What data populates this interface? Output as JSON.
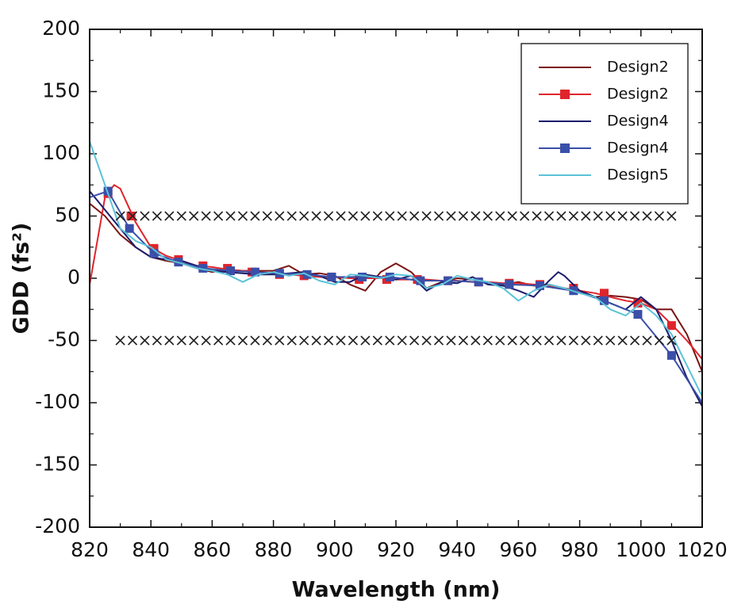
{
  "chart_data": {
    "type": "line",
    "xlabel": "Wavelength (nm)",
    "ylabel": "GDD (fs²)",
    "xlim": [
      820,
      1020
    ],
    "xticks": [
      820,
      840,
      860,
      880,
      900,
      920,
      940,
      960,
      980,
      1000,
      1020
    ],
    "ylim": [
      -200,
      200
    ],
    "yticks": [
      -200,
      -150,
      -100,
      -50,
      0,
      50,
      100,
      150,
      200
    ],
    "legend": "upper right",
    "series": [
      {
        "name": "Design2",
        "color": "#7a1414",
        "x": [
          820,
          825,
          830,
          835,
          840,
          845,
          850,
          855,
          860,
          865,
          870,
          875,
          880,
          885,
          890,
          895,
          900,
          905,
          910,
          915,
          920,
          925,
          930,
          935,
          940,
          945,
          950,
          955,
          960,
          965,
          970,
          975,
          980,
          985,
          990,
          995,
          1000,
          1005,
          1010,
          1015,
          1020
        ],
        "values": [
          60,
          50,
          35,
          25,
          17,
          14,
          12,
          8,
          5,
          7,
          6,
          6,
          6,
          10,
          3,
          4,
          2,
          -5,
          -10,
          5,
          12,
          5,
          -8,
          -3,
          0,
          -1,
          -3,
          -5,
          -3,
          -6,
          -5,
          -8,
          -10,
          -15,
          -14,
          -15,
          -17,
          -25,
          -25,
          -45,
          -75
        ]
      },
      {
        "name": "Design2",
        "color": "#e0242b",
        "x": [
          820,
          825,
          828,
          830,
          835,
          840,
          845,
          850,
          855,
          860,
          865,
          870,
          875,
          880,
          885,
          890,
          895,
          900,
          905,
          910,
          915,
          920,
          925,
          930,
          935,
          940,
          945,
          950,
          955,
          960,
          965,
          970,
          975,
          980,
          985,
          990,
          995,
          1000,
          1005,
          1010,
          1015,
          1020
        ],
        "values": [
          -5,
          65,
          75,
          72,
          45,
          25,
          18,
          14,
          10,
          9,
          7,
          6,
          5,
          4,
          3,
          2,
          1,
          1,
          0,
          0,
          0,
          -1,
          -1,
          -1,
          -2,
          -2,
          -3,
          -3,
          -4,
          -4,
          -5,
          -6,
          -8,
          -10,
          -12,
          -15,
          -18,
          -20,
          -25,
          -37,
          -50,
          -65
        ],
        "markers": {
          "x": [
            826,
            833.5,
            841,
            849,
            857,
            865,
            873,
            882,
            890,
            899,
            908,
            917,
            927,
            937,
            947,
            957,
            967,
            978,
            988,
            999,
            1010
          ],
          "values": [
            68,
            50,
            24,
            15,
            10,
            8,
            5,
            3,
            2,
            1,
            -1,
            -1,
            -1,
            -2,
            -3,
            -4,
            -5,
            -8,
            -12,
            -20,
            -38
          ]
        }
      },
      {
        "name": "Design4",
        "color": "#1c1c6b",
        "x": [
          820,
          825,
          830,
          835,
          840,
          845,
          850,
          855,
          860,
          865,
          870,
          875,
          880,
          885,
          890,
          895,
          900,
          905,
          910,
          915,
          920,
          925,
          930,
          935,
          940,
          945,
          950,
          955,
          960,
          965,
          970,
          973,
          975,
          980,
          985,
          990,
          995,
          1000,
          1005,
          1010,
          1015,
          1020
        ],
        "values": [
          70,
          55,
          40,
          25,
          17,
          15,
          14,
          10,
          6,
          5,
          4,
          3,
          3,
          4,
          5,
          2,
          -3,
          -3,
          3,
          1,
          -1,
          2,
          -10,
          -3,
          -4,
          1,
          -5,
          -6,
          -10,
          -15,
          -2,
          5,
          2,
          -10,
          -15,
          -20,
          -25,
          -15,
          -25,
          -50,
          -80,
          -103
        ]
      },
      {
        "name": "Design4",
        "color": "#3a4fa8",
        "x": [
          820,
          826,
          833,
          841,
          849,
          857,
          866,
          874,
          882,
          891,
          899,
          909,
          918,
          928,
          937,
          947,
          957,
          967,
          978,
          988,
          999,
          1010,
          1020
        ],
        "values": [
          65,
          70,
          40,
          20,
          13,
          8,
          6,
          5,
          4,
          3,
          1,
          1,
          1,
          -2,
          -2,
          -3,
          -5,
          -6,
          -10,
          -18,
          -29,
          -62,
          -100
        ],
        "markers": {
          "x": [
            826,
            833,
            841,
            849,
            857,
            866,
            874,
            882,
            891,
            899,
            909,
            918,
            928,
            937,
            947,
            957,
            967,
            978,
            988,
            999,
            1010
          ],
          "values": [
            70,
            40,
            20,
            13,
            8,
            6,
            5,
            4,
            3,
            1,
            1,
            1,
            -2,
            -2,
            -3,
            -5,
            -6,
            -10,
            -18,
            -29,
            -62
          ]
        }
      },
      {
        "name": "Design5",
        "color": "#5bc3d8",
        "x": [
          820,
          825,
          830,
          835,
          840,
          845,
          850,
          855,
          860,
          865,
          870,
          875,
          880,
          885,
          890,
          895,
          900,
          905,
          910,
          915,
          920,
          925,
          930,
          935,
          940,
          945,
          950,
          955,
          960,
          965,
          970,
          975,
          980,
          985,
          990,
          995,
          1000,
          1005,
          1010,
          1015,
          1020
        ],
        "values": [
          110,
          75,
          40,
          30,
          25,
          15,
          12,
          8,
          6,
          3,
          -3,
          3,
          5,
          2,
          4,
          -2,
          -5,
          3,
          2,
          0,
          3,
          2,
          -8,
          -5,
          2,
          -1,
          -3,
          -8,
          -18,
          -10,
          -5,
          -8,
          -12,
          -15,
          -25,
          -30,
          -20,
          -30,
          -45,
          -70,
          -95
        ]
      },
      {
        "color": "#222222",
        "marker": "x",
        "x": [
          830,
          834,
          838,
          842,
          846,
          850,
          854,
          858,
          862,
          866,
          870,
          874,
          878,
          882,
          886,
          890,
          894,
          898,
          902,
          906,
          910,
          914,
          918,
          922,
          926,
          930,
          934,
          938,
          942,
          946,
          950,
          954,
          958,
          962,
          966,
          970,
          974,
          978,
          982,
          986,
          990,
          994,
          998,
          1002,
          1006,
          1010
        ],
        "values": [
          50,
          50,
          50,
          50,
          50,
          50,
          50,
          50,
          50,
          50,
          50,
          50,
          50,
          50,
          50,
          50,
          50,
          50,
          50,
          50,
          50,
          50,
          50,
          50,
          50,
          50,
          50,
          50,
          50,
          50,
          50,
          50,
          50,
          50,
          50,
          50,
          50,
          50,
          50,
          50,
          50,
          50,
          50,
          50,
          50,
          50
        ]
      },
      {
        "color": "#222222",
        "marker": "x",
        "x": [
          830,
          834,
          838,
          842,
          846,
          850,
          854,
          858,
          862,
          866,
          870,
          874,
          878,
          882,
          886,
          890,
          894,
          898,
          902,
          906,
          910,
          914,
          918,
          922,
          926,
          930,
          934,
          938,
          942,
          946,
          950,
          954,
          958,
          962,
          966,
          970,
          974,
          978,
          982,
          986,
          990,
          994,
          998,
          1002,
          1006,
          1010
        ],
        "values": [
          -50,
          -50,
          -50,
          -50,
          -50,
          -50,
          -50,
          -50,
          -50,
          -50,
          -50,
          -50,
          -50,
          -50,
          -50,
          -50,
          -50,
          -50,
          -50,
          -50,
          -50,
          -50,
          -50,
          -50,
          -50,
          -50,
          -50,
          -50,
          -50,
          -50,
          -50,
          -50,
          -50,
          -50,
          -50,
          -50,
          -50,
          -50,
          -50,
          -50,
          -50,
          -50,
          -50,
          -50,
          -50,
          -50
        ]
      }
    ]
  }
}
